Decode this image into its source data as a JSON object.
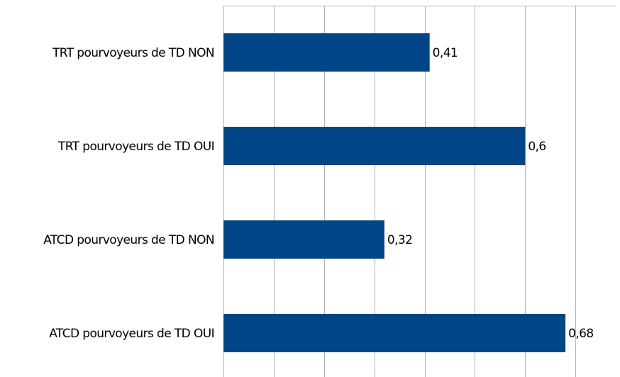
{
  "chart_data": {
    "type": "bar",
    "orientation": "horizontal",
    "categories": [
      "TRT pourvoyeurs de TD NON",
      "TRT pourvoyeurs de TD OUI",
      "ATCD pourvoyeurs de TD NON",
      "ATCD pourvoyeurs de TD OUI"
    ],
    "values": [
      0.41,
      0.6,
      0.32,
      0.68
    ],
    "value_labels": [
      "0,41",
      "0,6",
      "0,32",
      "0,68"
    ],
    "color": "#004586",
    "xlim": [
      0,
      0.78
    ],
    "xticks": [
      0,
      0.1,
      0.2,
      0.3,
      0.4,
      0.5,
      0.6,
      0.7
    ],
    "grid": true
  }
}
